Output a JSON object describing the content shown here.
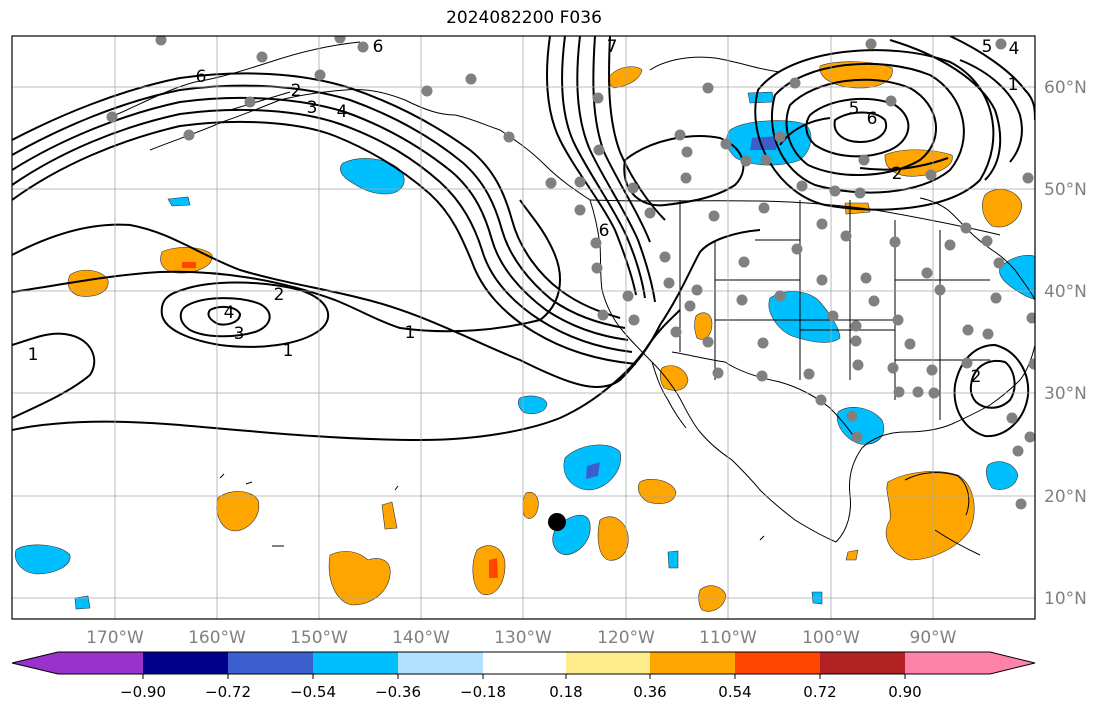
{
  "title": "2024082200 F036",
  "lon_labels": [
    "170°W",
    "160°W",
    "150°W",
    "140°W",
    "130°W",
    "120°W",
    "110°W",
    "100°W",
    "90°W"
  ],
  "lat_labels": [
    "60°N",
    "50°N",
    "40°N",
    "30°N",
    "20°N",
    "10°N"
  ],
  "contour_labels": [
    "1",
    "1",
    "1",
    "2",
    "3",
    "4",
    "2",
    "3",
    "4",
    "5",
    "6",
    "6",
    "2",
    "6",
    "5",
    "4",
    "6",
    "7",
    "1",
    "2"
  ],
  "colorbar": {
    "colors": [
      "#9932cc",
      "#00008b",
      "#3a5fcd",
      "#00bfff",
      "#b0e2ff",
      "#ffffff",
      "#ffec8b",
      "#ffa500",
      "#ff4500",
      "#b22222",
      "#ff82ab"
    ],
    "tick_labels": [
      "−0.90",
      "−0.72",
      "−0.54",
      "−0.36",
      "−0.18",
      "0.18",
      "0.36",
      "0.54",
      "0.72",
      "0.90"
    ]
  },
  "colors": {
    "contour": "#000000",
    "grid": "#a9a9a9",
    "station_dot": "#808080",
    "storm_marker": "#000000",
    "axis_label": "#808080"
  }
}
